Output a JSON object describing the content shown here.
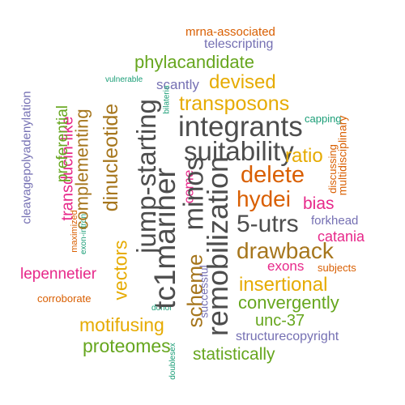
{
  "colors": {
    "orange": "#d95f02",
    "purple": "#7570b3",
    "pink": "#e7298a",
    "green": "#66a61e",
    "gold": "#e6ab02",
    "brown": "#a6761d",
    "gray": "#666666",
    "teal": "#1b9e77",
    "dark": "#4d4d4d"
  },
  "words": [
    {
      "text": "mrna-associated",
      "color": "orange"
    },
    {
      "text": "telescripting",
      "color": "purple"
    },
    {
      "text": "phylacandidate",
      "color": "green"
    },
    {
      "text": "vulnerable",
      "color": "teal"
    },
    {
      "text": "scantly",
      "color": "purple"
    },
    {
      "text": "devised",
      "color": "gold"
    },
    {
      "text": "transposons",
      "color": "gold"
    },
    {
      "text": "capping",
      "color": "teal"
    },
    {
      "text": "integrants",
      "color": "dark"
    },
    {
      "text": "suitability",
      "color": "dark"
    },
    {
      "text": "ratio",
      "color": "gold"
    },
    {
      "text": "delete",
      "color": "orange"
    },
    {
      "text": "hydei",
      "color": "orange"
    },
    {
      "text": "bias",
      "color": "pink"
    },
    {
      "text": "5-utrs",
      "color": "dark"
    },
    {
      "text": "forkhead",
      "color": "purple"
    },
    {
      "text": "catania",
      "color": "pink"
    },
    {
      "text": "drawback",
      "color": "brown"
    },
    {
      "text": "exons",
      "color": "pink"
    },
    {
      "text": "subjects",
      "color": "orange"
    },
    {
      "text": "lepennetier",
      "color": "pink"
    },
    {
      "text": "insertional",
      "color": "gold"
    },
    {
      "text": "corroborate",
      "color": "orange"
    },
    {
      "text": "donor",
      "color": "teal"
    },
    {
      "text": "convergently",
      "color": "green"
    },
    {
      "text": "unc-37",
      "color": "green"
    },
    {
      "text": "motifusing",
      "color": "gold"
    },
    {
      "text": "structurecopyright",
      "color": "purple"
    },
    {
      "text": "proteomes",
      "color": "green"
    },
    {
      "text": "statistically",
      "color": "green"
    },
    {
      "text": "cleavagepolyadenylation",
      "color": "purple"
    },
    {
      "text": "transducin-like",
      "color": "pink"
    },
    {
      "text": "preferential",
      "color": "green"
    },
    {
      "text": "exon-intron",
      "color": "teal"
    },
    {
      "text": "maximized",
      "color": "orange"
    },
    {
      "text": "complementing",
      "color": "brown"
    },
    {
      "text": "dinucleotide",
      "color": "brown"
    },
    {
      "text": "vectors",
      "color": "gold"
    },
    {
      "text": "jump-starting",
      "color": "dark"
    },
    {
      "text": "tc1mariner",
      "color": "dark"
    },
    {
      "text": "come",
      "color": "pink"
    },
    {
      "text": "minos",
      "color": "dark"
    },
    {
      "text": "scheme",
      "color": "brown"
    },
    {
      "text": "successful",
      "color": "purple"
    },
    {
      "text": "remobilization",
      "color": "dark"
    },
    {
      "text": "doublesex",
      "color": "teal"
    },
    {
      "text": "bilateria",
      "color": "teal"
    },
    {
      "text": "discussing",
      "color": "orange"
    },
    {
      "text": "multidisciplinary",
      "color": "orange"
    }
  ]
}
